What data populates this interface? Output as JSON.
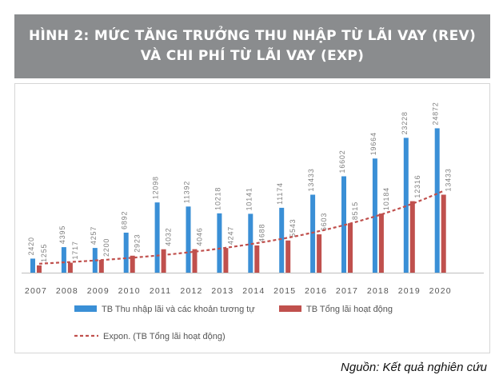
{
  "header": {
    "title_line1": "HÌNH 2: MỨC TĂNG TRƯỞNG THU NHẬP TỪ LÃI VAY (REV)",
    "title_line2": "VÀ CHI PHÍ TỪ LÃI VAY (EXP)"
  },
  "source": "Nguồn: Kết quả nghiên cứu",
  "chart_data": {
    "type": "bar",
    "categories": [
      "2007",
      "2008",
      "2009",
      "2010",
      "2011",
      "2012",
      "2013",
      "2014",
      "2015",
      "2016",
      "2017",
      "2018",
      "2019",
      "2020"
    ],
    "series": [
      {
        "name": "TB Thu nhập lãi và các khoản tương tự",
        "color": "#3a8fd6",
        "values": [
          2420,
          4395,
          4257,
          6892,
          12098,
          11392,
          10218,
          10141,
          11174,
          13433,
          16602,
          19664,
          23228,
          24872
        ]
      },
      {
        "name": "TB Tổng lãi hoạt động",
        "color": "#c0504d",
        "values": [
          1255,
          1717,
          2200,
          2923,
          4032,
          4046,
          4247,
          4688,
          5543,
          6603,
          8515,
          10184,
          12316,
          13433
        ]
      }
    ],
    "trendline": {
      "name": "Expon. (TB Tổng lãi hoạt động)",
      "color": "#c0504d",
      "style": "dashed"
    },
    "ylim": [
      0,
      27000
    ],
    "grid": false,
    "legend": "bottom-left"
  }
}
